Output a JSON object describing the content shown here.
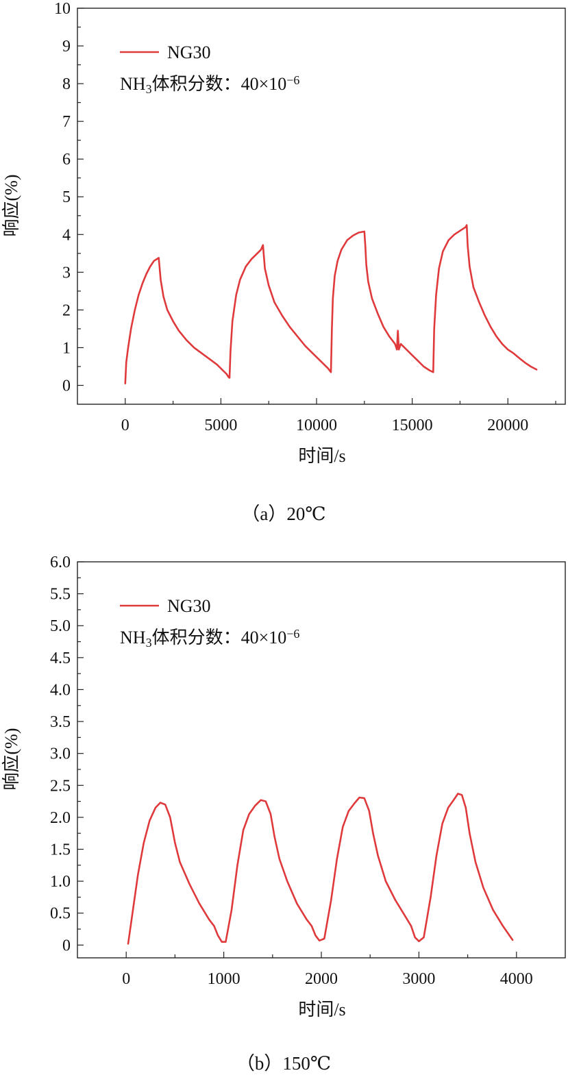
{
  "colors": {
    "series": "#e0393b",
    "axis": "#222222"
  },
  "chart_data": [
    {
      "type": "line",
      "panel": "a",
      "caption": "（a）20℃",
      "xlabel": "时间/s",
      "ylabel": "响应(%)",
      "xlim": [
        -2500,
        23000
      ],
      "ylim": [
        -0.5,
        10
      ],
      "xticks": [
        0,
        5000,
        10000,
        15000,
        20000
      ],
      "xtick_labels": [
        "0",
        "5000",
        "10000",
        "15000",
        "20000"
      ],
      "yticks": [
        0,
        1,
        2,
        3,
        4,
        5,
        6,
        7,
        8,
        9,
        10
      ],
      "ytick_labels": [
        "0",
        "1",
        "2",
        "3",
        "4",
        "5",
        "6",
        "7",
        "8",
        "9",
        "10"
      ],
      "legend": {
        "label": "NG30",
        "placement": "top-left"
      },
      "annotation": {
        "prefix": "NH",
        "sub": "3",
        "mid": "体积分数：40×10",
        "sup": "−6"
      },
      "series": [
        {
          "name": "NG30",
          "x": [
            0,
            50,
            150,
            300,
            500,
            700,
            900,
            1100,
            1300,
            1500,
            1650,
            1750,
            1850,
            2000,
            2200,
            2500,
            2800,
            3200,
            3600,
            4000,
            4400,
            4800,
            5100,
            5300,
            5400,
            5450,
            5500,
            5600,
            5800,
            6000,
            6300,
            6600,
            6900,
            7100,
            7200,
            7300,
            7500,
            7800,
            8200,
            8600,
            9000,
            9400,
            9800,
            10200,
            10600,
            10750,
            10800,
            10850,
            10950,
            11100,
            11300,
            11600,
            11900,
            12200,
            12500,
            12550,
            12600,
            12700,
            12900,
            13200,
            13500,
            13800,
            14100,
            14200,
            14250,
            14300,
            14400,
            14700,
            15000,
            15300,
            15600,
            15900,
            16100,
            16150,
            16250,
            16400,
            16600,
            16900,
            17200,
            17500,
            17800,
            17850,
            17900,
            18000,
            18200,
            18500,
            18800,
            19100,
            19400,
            19700,
            20000,
            20300,
            20600,
            20900,
            21200,
            21500
          ],
          "values": [
            0.05,
            0.6,
            1.0,
            1.5,
            2.0,
            2.4,
            2.7,
            2.95,
            3.15,
            3.3,
            3.35,
            3.38,
            2.8,
            2.35,
            2.0,
            1.7,
            1.45,
            1.2,
            1.0,
            0.85,
            0.7,
            0.55,
            0.4,
            0.3,
            0.22,
            0.2,
            0.9,
            1.7,
            2.4,
            2.8,
            3.15,
            3.35,
            3.5,
            3.6,
            3.72,
            3.1,
            2.65,
            2.2,
            1.85,
            1.55,
            1.3,
            1.05,
            0.85,
            0.65,
            0.45,
            0.35,
            1.5,
            2.3,
            2.9,
            3.3,
            3.6,
            3.85,
            3.97,
            4.05,
            4.08,
            3.7,
            3.2,
            2.75,
            2.3,
            1.9,
            1.55,
            1.3,
            1.1,
            0.95,
            1.45,
            0.95,
            1.1,
            0.95,
            0.8,
            0.65,
            0.5,
            0.4,
            0.35,
            1.5,
            2.4,
            3.1,
            3.55,
            3.85,
            4.0,
            4.1,
            4.2,
            4.25,
            3.7,
            3.15,
            2.6,
            2.2,
            1.85,
            1.55,
            1.3,
            1.1,
            0.95,
            0.85,
            0.72,
            0.6,
            0.5,
            0.42
          ]
        }
      ]
    },
    {
      "type": "line",
      "panel": "b",
      "caption": "（b）150℃",
      "xlabel": "时间/s",
      "ylabel": "响应(%)",
      "xlim": [
        -500,
        4500
      ],
      "ylim": [
        -0.2,
        6.0
      ],
      "xticks": [
        0,
        1000,
        2000,
        3000,
        4000
      ],
      "xtick_labels": [
        "0",
        "1000",
        "2000",
        "3000",
        "4000"
      ],
      "yticks": [
        0,
        0.5,
        1.0,
        1.5,
        2.0,
        2.5,
        3.0,
        3.5,
        4.0,
        4.5,
        5.0,
        5.5,
        6.0
      ],
      "ytick_labels": [
        "0",
        "0.5",
        "1.0",
        "1.5",
        "2.0",
        "2.5",
        "3.0",
        "3.5",
        "4.0",
        "4.5",
        "5.0",
        "5.5",
        "6.0"
      ],
      "legend": {
        "label": "NG30",
        "placement": "top-left"
      },
      "annotation": {
        "prefix": "NH",
        "sub": "3",
        "mid": "体积分数：40×10",
        "sup": "−6"
      },
      "series": [
        {
          "name": "NG30",
          "x": [
            20,
            60,
            120,
            180,
            240,
            300,
            350,
            400,
            450,
            500,
            550,
            650,
            750,
            850,
            900,
            940,
            980,
            1020,
            1080,
            1140,
            1200,
            1260,
            1320,
            1380,
            1430,
            1480,
            1520,
            1570,
            1650,
            1750,
            1850,
            1900,
            1940,
            1980,
            2030,
            2100,
            2160,
            2220,
            2280,
            2340,
            2390,
            2440,
            2490,
            2530,
            2580,
            2660,
            2760,
            2860,
            2920,
            2960,
            3000,
            3050,
            3120,
            3180,
            3240,
            3300,
            3360,
            3400,
            3440,
            3480,
            3520,
            3580,
            3660,
            3760,
            3860,
            3960
          ],
          "values": [
            0.02,
            0.45,
            1.1,
            1.6,
            1.95,
            2.15,
            2.23,
            2.2,
            2.0,
            1.6,
            1.3,
            0.95,
            0.65,
            0.4,
            0.3,
            0.15,
            0.05,
            0.05,
            0.55,
            1.25,
            1.8,
            2.05,
            2.18,
            2.27,
            2.25,
            2.05,
            1.7,
            1.35,
            1.0,
            0.65,
            0.4,
            0.3,
            0.15,
            0.07,
            0.1,
            0.7,
            1.35,
            1.85,
            2.1,
            2.22,
            2.31,
            2.3,
            2.1,
            1.75,
            1.4,
            1.0,
            0.7,
            0.45,
            0.3,
            0.12,
            0.06,
            0.12,
            0.75,
            1.4,
            1.9,
            2.15,
            2.28,
            2.37,
            2.35,
            2.15,
            1.75,
            1.3,
            0.9,
            0.55,
            0.3,
            0.08
          ]
        }
      ]
    }
  ]
}
